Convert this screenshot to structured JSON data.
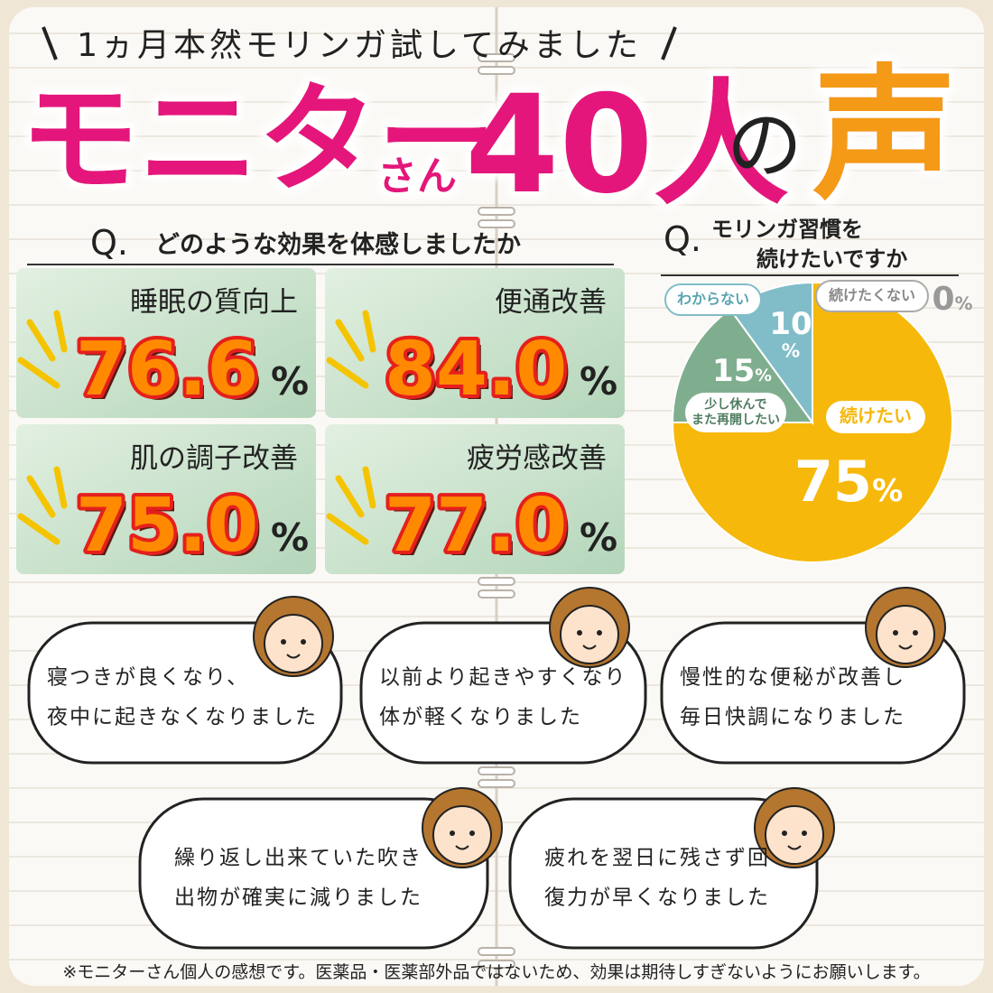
{
  "header": {
    "lead": "1ヵ月本然モリンガ試してみました",
    "title_main": "モニター",
    "title_small": "さん",
    "title_count": "40人",
    "title_particle": "の",
    "title_end": "声"
  },
  "effects": {
    "q_mark": "Q.",
    "question": "どのような効果を体感しましたか",
    "items": [
      {
        "label": "睡眠の質向上",
        "value": "76.6",
        "unit": "%"
      },
      {
        "label": "便通改善",
        "value": "84.0",
        "unit": "%"
      },
      {
        "label": "肌の調子改善",
        "value": "75.0",
        "unit": "%"
      },
      {
        "label": "疲労感改善",
        "value": "77.0",
        "unit": "%"
      }
    ]
  },
  "chart_data": {
    "type": "pie",
    "q_mark": "Q.",
    "title_lines": [
      "モリンガ習慣を",
      "続けたいですか"
    ],
    "unit": "%",
    "categories": [
      [
        "続けたい"
      ],
      [
        "少し休んで",
        "また再開したい"
      ],
      [
        "わからない"
      ],
      [
        "続けたくない"
      ]
    ],
    "values": [
      75,
      15,
      10,
      0
    ],
    "colors": [
      "#f6b80a",
      "#7fae8e",
      "#80bdc8",
      "#9a9a9a"
    ]
  },
  "voices": [
    {
      "lines": [
        "寝つきが良くなり、",
        "夜中に起きなくなりました"
      ]
    },
    {
      "lines": [
        "以前より起きやすくなり",
        "体が軽くなりました"
      ]
    },
    {
      "lines": [
        "慢性的な便秘が改善し",
        "毎日快調になりました"
      ]
    },
    {
      "lines": [
        "繰り返し出来ていた吹き",
        "出物が確実に減りました"
      ]
    },
    {
      "lines": [
        "疲れを翌日に残さず回",
        "復力が早くなりました"
      ]
    }
  ],
  "footnote": "※モニターさん個人の感想です。医薬品・医薬部外品ではないため、効果は期待しすぎないようにお願いします。"
}
